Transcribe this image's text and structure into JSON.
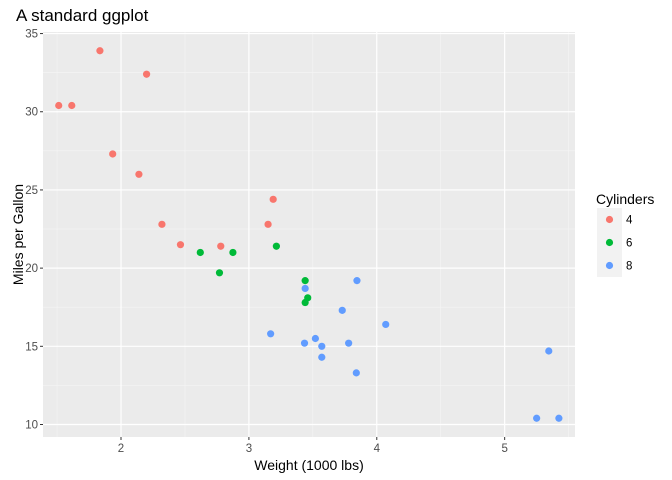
{
  "chart_data": {
    "type": "scatter",
    "title": "A standard ggplot",
    "xlabel": "Weight (1000 lbs)",
    "ylabel": "Miles per Gallon",
    "xlim": [
      1.39,
      5.55
    ],
    "ylim": [
      9.2,
      35.1
    ],
    "x_ticks": [
      2,
      3,
      4,
      5
    ],
    "y_ticks": [
      10,
      15,
      20,
      25,
      30,
      35
    ],
    "x_tick_labels": [
      "2",
      "3",
      "4",
      "5"
    ],
    "y_tick_labels": [
      "10",
      "15",
      "20",
      "25",
      "30",
      "35"
    ],
    "grid": true,
    "legend": {
      "title": "Cylinders",
      "position": "right"
    },
    "series": [
      {
        "name": "4",
        "color": "#F8766D",
        "points": [
          [
            2.32,
            22.8
          ],
          [
            3.19,
            24.4
          ],
          [
            3.15,
            22.8
          ],
          [
            2.2,
            32.4
          ],
          [
            1.615,
            30.4
          ],
          [
            1.835,
            33.9
          ],
          [
            2.465,
            21.5
          ],
          [
            1.935,
            27.3
          ],
          [
            2.14,
            26.0
          ],
          [
            1.513,
            30.4
          ],
          [
            2.78,
            21.4
          ]
        ]
      },
      {
        "name": "6",
        "color": "#00BA38",
        "points": [
          [
            2.62,
            21.0
          ],
          [
            2.875,
            21.0
          ],
          [
            3.215,
            21.4
          ],
          [
            3.46,
            18.1
          ],
          [
            3.44,
            19.2
          ],
          [
            3.44,
            17.8
          ],
          [
            2.77,
            19.7
          ]
        ]
      },
      {
        "name": "8",
        "color": "#619CFF",
        "points": [
          [
            3.44,
            18.7
          ],
          [
            3.57,
            14.3
          ],
          [
            4.07,
            16.4
          ],
          [
            3.73,
            17.3
          ],
          [
            3.78,
            15.2
          ],
          [
            5.25,
            10.4
          ],
          [
            5.424,
            10.4
          ],
          [
            5.345,
            14.7
          ],
          [
            3.52,
            15.5
          ],
          [
            3.435,
            15.2
          ],
          [
            3.84,
            13.3
          ],
          [
            3.845,
            19.2
          ],
          [
            3.17,
            15.8
          ],
          [
            3.57,
            15.0
          ]
        ]
      }
    ]
  }
}
